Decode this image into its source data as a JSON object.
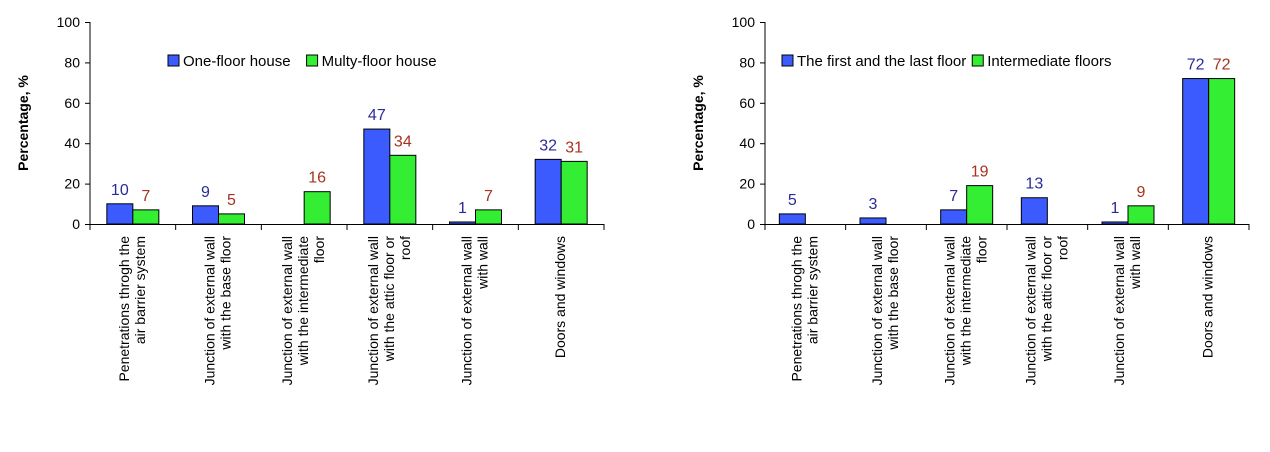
{
  "chart_data": [
    {
      "type": "bar",
      "ylabel": "Percentage, %",
      "ylim": [
        0,
        100
      ],
      "yticks": [
        "0",
        "20",
        "40",
        "60",
        "80",
        "100"
      ],
      "legend_position": "top-center",
      "categories": [
        "Penetrations throgh the air barrier system",
        "Junction of external wall with the base floor",
        "Junction of external wall with the intermediate floor",
        "Junction of external wall with the attic floor or roof",
        "Junction of external wall with wall",
        "Doors and windows"
      ],
      "series": [
        {
          "name": "One-floor house",
          "values": [
            10,
            9,
            0,
            47,
            1,
            32
          ],
          "labels": [
            "10",
            "9",
            "",
            "47",
            "1",
            "32"
          ],
          "color": "#3b5bff",
          "label_color": "#2a2a9a"
        },
        {
          "name": "Multy-floor house",
          "values": [
            7,
            5,
            16,
            34,
            7,
            31
          ],
          "labels": [
            "7",
            "5",
            "16",
            "34",
            "7",
            "31"
          ],
          "color": "#33ee33",
          "label_color": "#a8321e"
        }
      ]
    },
    {
      "type": "bar",
      "ylabel": "Percentage, %",
      "ylim": [
        0,
        100
      ],
      "yticks": [
        "0",
        "20",
        "40",
        "60",
        "80",
        "100"
      ],
      "legend_position": "top-center",
      "categories": [
        "Penetrations throgh the air barrier system",
        "Junction of external wall with the base floor",
        "Junction of external wall with the intermediate floor",
        "Junction of external wall with the attic floor or roof",
        "Junction of external wall with wall",
        "Doors and windows"
      ],
      "series": [
        {
          "name": "The first and the last floor",
          "values": [
            5,
            3,
            7,
            13,
            1,
            72
          ],
          "labels": [
            "5",
            "3",
            "7",
            "13",
            "1",
            "72"
          ],
          "color": "#3b5bff",
          "label_color": "#2a2a9a"
        },
        {
          "name": "Intermediate floors",
          "values": [
            0,
            0,
            19,
            0,
            9,
            72
          ],
          "labels": [
            "",
            "",
            "19",
            "",
            "9",
            "72"
          ],
          "color": "#33ee33",
          "label_color": "#a8321e"
        }
      ]
    }
  ]
}
